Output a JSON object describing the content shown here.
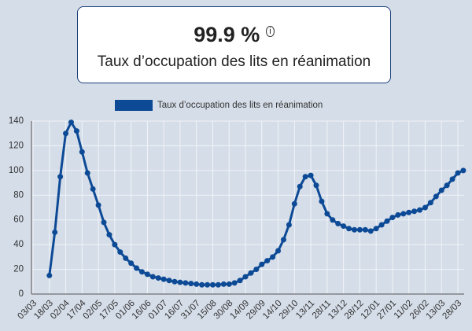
{
  "card": {
    "value": "99.9 %",
    "subtitle": "Taux d’occupation des lits en réanimation"
  },
  "chart_data": {
    "type": "line",
    "categories": [
      "03/03",
      null,
      null,
      "18/03",
      null,
      null,
      "02/04",
      null,
      null,
      "17/04",
      null,
      null,
      "02/05",
      null,
      null,
      "17/05",
      null,
      null,
      "01/06",
      null,
      null,
      "16/06",
      null,
      null,
      "01/07",
      null,
      null,
      "16/07",
      null,
      null,
      "31/07",
      null,
      null,
      "15/08",
      null,
      null,
      "30/08",
      null,
      null,
      "14/09",
      null,
      null,
      "29/09",
      null,
      null,
      "14/10",
      null,
      null,
      "29/10",
      null,
      null,
      "13/11",
      null,
      null,
      "28/11",
      null,
      null,
      "13/12",
      null,
      null,
      "28/12",
      null,
      null,
      "12/01",
      null,
      null,
      "27/01",
      null,
      null,
      "11/02",
      null,
      null,
      "26/02",
      null,
      null,
      "13/03",
      null,
      null,
      "28/03",
      null
    ],
    "series": [
      {
        "name": "Taux d’occupation des lits en réanimation",
        "color": "#0d4a96",
        "values": [
          null,
          null,
          null,
          15,
          50,
          95,
          130,
          139,
          132,
          115,
          98,
          85,
          72,
          58,
          48,
          40,
          34,
          29,
          25,
          21,
          18,
          16,
          14,
          13,
          12,
          11,
          10,
          9.5,
          9,
          8.5,
          8,
          7.5,
          7.5,
          7.5,
          7.5,
          8,
          8,
          9,
          11,
          14,
          17,
          20,
          24,
          27,
          30,
          35,
          44,
          56,
          73,
          87,
          95,
          96,
          88,
          75,
          65,
          60,
          57,
          55,
          53,
          52,
          52,
          52,
          51,
          53,
          56,
          59,
          62,
          64,
          65,
          66,
          67,
          68,
          70,
          74,
          79,
          84,
          88,
          93,
          98,
          100
        ]
      }
    ],
    "ylim": [
      0,
      140
    ],
    "yticks": [
      0,
      20,
      40,
      60,
      80,
      100,
      120,
      140
    ],
    "grid": true,
    "legend": "top"
  }
}
